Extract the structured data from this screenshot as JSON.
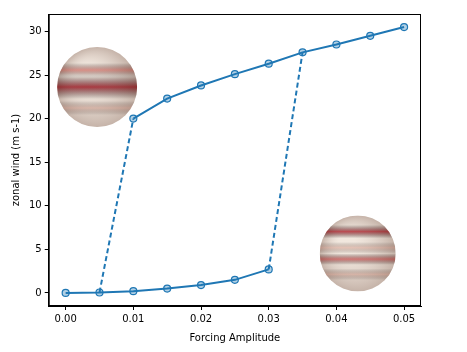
{
  "chart_data": {
    "type": "line",
    "x_label": "Forcing Amplitude",
    "y_label": "zonal wind (m s-1)",
    "xlim": [
      -0.0025,
      0.0525
    ],
    "ylim": [
      -1.5,
      32
    ],
    "xticks": [
      {
        "value": 0,
        "label": "0.00"
      },
      {
        "value": 0.01,
        "label": "0.01"
      },
      {
        "value": 0.02,
        "label": "0.02"
      },
      {
        "value": 0.03,
        "label": "0.03"
      },
      {
        "value": 0.04,
        "label": "0.04"
      },
      {
        "value": 0.05,
        "label": "0.05"
      }
    ],
    "yticks": [
      0,
      5,
      10,
      15,
      20,
      25,
      30
    ],
    "grid": false,
    "series": [
      {
        "color": "#1f77b4",
        "line_style": "solid",
        "marker": "circle",
        "x": [
          0.01,
          0.015,
          0.02,
          0.025,
          0.03,
          0.035,
          0.04,
          0.045,
          0.05
        ],
        "values": [
          20,
          22.3,
          23.8,
          25.1,
          26.3,
          27.6,
          28.5,
          29.5,
          30.5
        ]
      },
      {
        "color": "#1f77b4",
        "line_style": "solid",
        "marker": "circle",
        "x": [
          0,
          0.005,
          0.01,
          0.015,
          0.02,
          0.025,
          0.03
        ],
        "values": [
          0,
          0.05,
          0.2,
          0.5,
          0.9,
          1.5,
          2.7
        ]
      },
      {
        "color": "#1f77b4",
        "line_style": "dashed",
        "marker": "none",
        "x": [
          0.005,
          0.01
        ],
        "values": [
          0.05,
          20
        ]
      },
      {
        "color": "#1f77b4",
        "line_style": "dashed",
        "marker": "none",
        "x": [
          0.03,
          0.035
        ],
        "values": [
          2.7,
          27.6
        ]
      }
    ]
  }
}
